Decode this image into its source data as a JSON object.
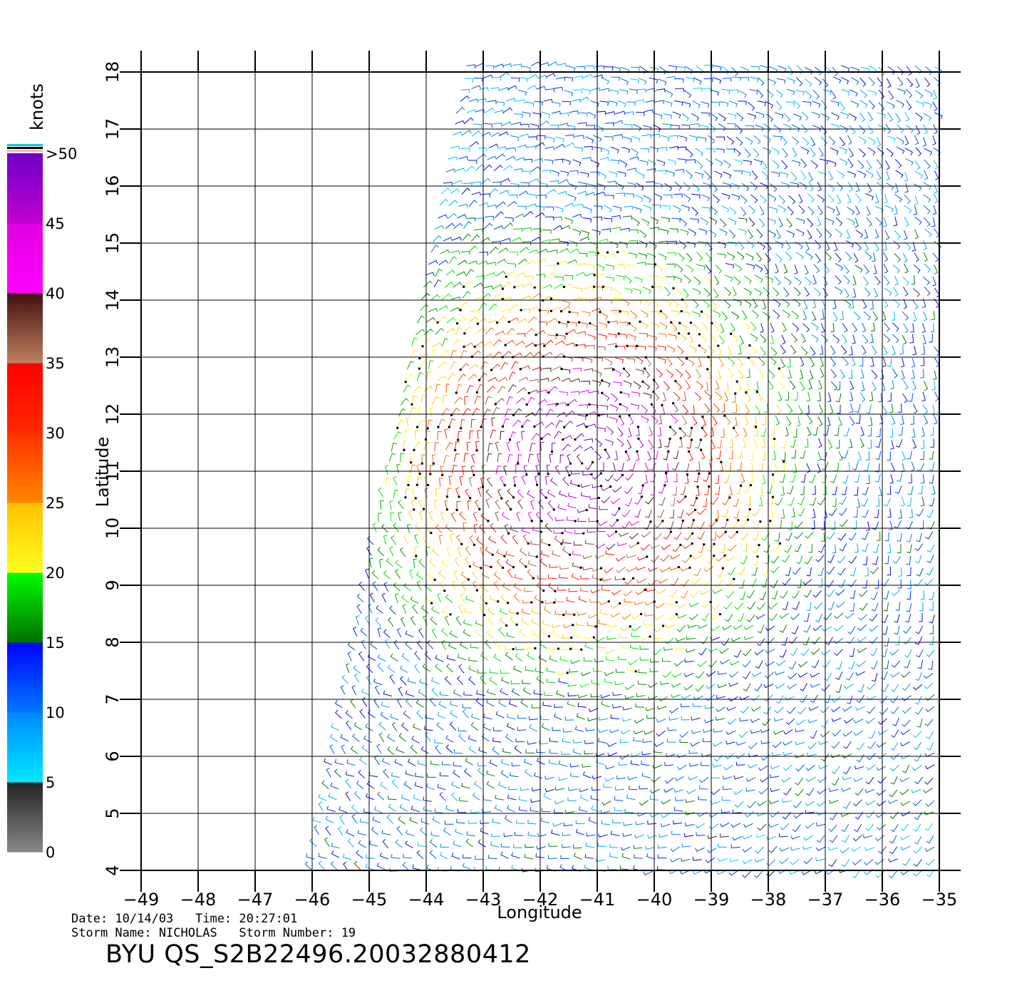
{
  "chart_data": {
    "type": "wind-barb-map",
    "xlabel": "Longitude",
    "ylabel": "Latitude",
    "xlim": [
      -49,
      -35
    ],
    "ylim": [
      4,
      18
    ],
    "xticks": [
      -49,
      -48,
      -47,
      -46,
      -45,
      -44,
      -43,
      -42,
      -41,
      -40,
      -39,
      -38,
      -37,
      -36,
      -35
    ],
    "xtick_labels": [
      "−49",
      "−48",
      "−47",
      "−46",
      "−45",
      "−44",
      "−43",
      "−42",
      "−41",
      "−40",
      "−39",
      "−38",
      "−37",
      "−36",
      "−35"
    ],
    "yticks": [
      4,
      5,
      6,
      7,
      8,
      9,
      10,
      11,
      12,
      13,
      14,
      15,
      16,
      17,
      18
    ],
    "ytick_labels": [
      "4",
      "5",
      "6",
      "7",
      "8",
      "9",
      "10",
      "11",
      "12",
      "13",
      "14",
      "15",
      "16",
      "17",
      "18"
    ],
    "grid": true,
    "swath": {
      "corners": [
        [
          -43.3,
          18.1
        ],
        [
          -35.1,
          18.1
        ],
        [
          -35.1,
          4.0
        ],
        [
          -46.0,
          4.0
        ]
      ]
    },
    "storm_center": [
      -41.2,
      11.2
    ],
    "colorbar": {
      "title": "knots",
      "position": "left",
      "bins": [
        {
          "min": 0,
          "max": 5,
          "from": "#888888",
          "to": "#222222"
        },
        {
          "min": 5,
          "max": 10,
          "from": "#00e8ff",
          "to": "#0088ff"
        },
        {
          "min": 10,
          "max": 15,
          "from": "#0078ff",
          "to": "#0000ff"
        },
        {
          "min": 15,
          "max": 20,
          "from": "#007000",
          "to": "#00ff00"
        },
        {
          "min": 20,
          "max": 25,
          "from": "#ffff20",
          "to": "#ffc000"
        },
        {
          "min": 25,
          "max": 30,
          "from": "#ff8800",
          "to": "#ff3000"
        },
        {
          "min": 30,
          "max": 35,
          "from": "#ff2800",
          "to": "#ff0000"
        },
        {
          "min": 35,
          "max": 40,
          "from": "#c08060",
          "to": "#401010"
        },
        {
          "min": 40,
          "max": 45,
          "from": "#ff00ff",
          "to": "#e000e0"
        },
        {
          "min": 45,
          "max": 50,
          "from": "#c000d0",
          "to": "#7000c8"
        }
      ],
      "labels": [
        "0",
        "5",
        "10",
        "15",
        "20",
        "25",
        "30",
        "35",
        "40",
        "45",
        ">50"
      ]
    }
  },
  "info": {
    "line1": "Date: 10/14/03   Time: 20:27:01",
    "line2": "Storm Name: NICHOLAS   Storm Number: 19",
    "file_id": "BYU QS_S2B22496.20032880412"
  }
}
